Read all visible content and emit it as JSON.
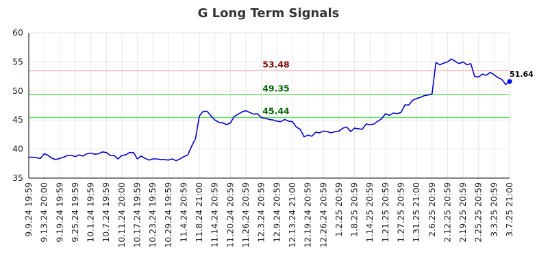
{
  "chart_data": {
    "type": "line",
    "title": "G Long Term Signals",
    "xlabel": "",
    "ylabel": "",
    "ylim": [
      35,
      60
    ],
    "yticks": [
      35,
      40,
      45,
      50,
      55,
      60
    ],
    "grid": true,
    "line_color": "#0000cc",
    "x_tick_labels": [
      "9.9.24 19:59",
      "9.13.24 20:00",
      "9.19.24 19:59",
      "9.25.24 19:59",
      "10.1.24 19:59",
      "10.7.24 19:59",
      "10.11.24 20:00",
      "10.17.24 19:59",
      "10.23.24 19:59",
      "10.29.24 19:59",
      "11.4.24 20:59",
      "11.8.24 21:00",
      "11.14.24 20:59",
      "11.20.24 20:59",
      "11.26.24 20:59",
      "12.3.24 20:59",
      "12.9.24 20:59",
      "12.13.24 21:00",
      "12.19.24 20:59",
      "12.26.24 20:59",
      "1.2.25 20:59",
      "1.8.25 20:59",
      "1.14.25 20:59",
      "1.21.25 20:59",
      "1.27.25 20:59",
      "1.31.25 21:00",
      "2.6.25 20:59",
      "2.12.25 20:59",
      "2.19.25 20:59",
      "2.25.25 20:59",
      "3.3.25 20:59",
      "3.7.25 21:00"
    ],
    "values": [
      38.6,
      38.6,
      38.5,
      38.4,
      39.2,
      38.9,
      38.4,
      38.2,
      38.4,
      38.6,
      38.9,
      38.9,
      38.7,
      39.0,
      38.8,
      39.2,
      39.3,
      39.1,
      39.2,
      39.5,
      39.4,
      38.9,
      38.9,
      38.3,
      38.9,
      39.0,
      39.4,
      39.4,
      38.3,
      38.8,
      38.4,
      38.1,
      38.3,
      38.3,
      38.2,
      38.2,
      38.1,
      38.3,
      38.0,
      38.3,
      38.7,
      39.0,
      40.5,
      41.8,
      45.7,
      46.5,
      46.5,
      45.7,
      45.0,
      44.6,
      44.5,
      44.2,
      44.5,
      45.6,
      46.0,
      46.4,
      46.6,
      46.3,
      46.0,
      46.1,
      45.4,
      45.3,
      45.1,
      45.0,
      44.8,
      44.7,
      45.1,
      44.8,
      44.7,
      43.8,
      43.4,
      42.1,
      42.4,
      42.2,
      42.9,
      42.8,
      43.1,
      43.0,
      42.8,
      43.0,
      43.1,
      43.6,
      43.8,
      43.0,
      43.6,
      43.5,
      43.4,
      44.3,
      44.2,
      44.3,
      44.8,
      45.2,
      46.1,
      45.8,
      46.2,
      46.1,
      46.3,
      47.6,
      47.6,
      48.4,
      48.7,
      48.9,
      49.2,
      49.3,
      49.5,
      54.9,
      54.5,
      54.8,
      55.0,
      55.5,
      55.1,
      54.7,
      55.0,
      54.5,
      54.7,
      52.5,
      52.4,
      52.9,
      52.7,
      53.2,
      52.8,
      52.3,
      52.0,
      51.1,
      51.64
    ],
    "reference_lines": [
      {
        "value": 53.48,
        "label": "53.48",
        "line_color": "#ffb3b3",
        "label_color": "#800000"
      },
      {
        "value": 49.35,
        "label": "49.35",
        "line_color": "#66dd66",
        "label_color": "#006600"
      },
      {
        "value": 45.44,
        "label": "45.44",
        "line_color": "#66dd66",
        "label_color": "#006600"
      }
    ],
    "last_value_label": "51.64",
    "last_point_color": "#0000ff"
  }
}
